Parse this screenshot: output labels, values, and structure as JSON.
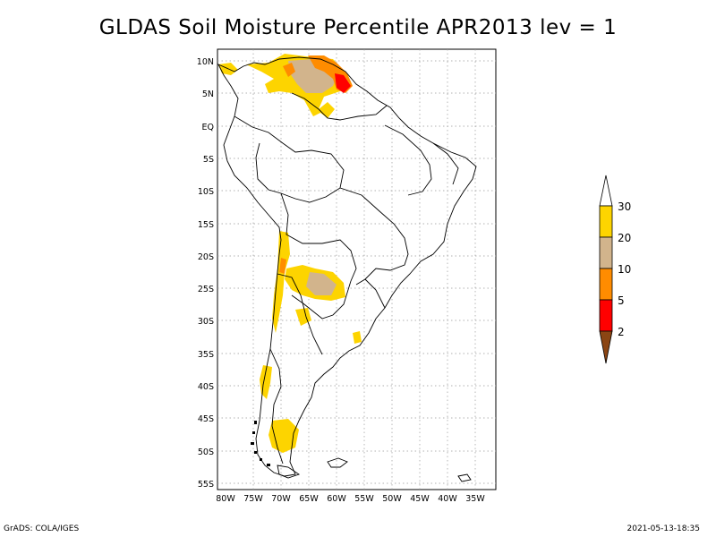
{
  "title": "GLDAS Soil Moisture Percentile APR2013 lev = 1",
  "footer": {
    "left": "GrADS: COLA/IGES",
    "right": "2021-05-13-18:35"
  },
  "map": {
    "lon_labels": [
      "80W",
      "75W",
      "70W",
      "65W",
      "60W",
      "55W",
      "50W",
      "45W",
      "40W",
      "35W"
    ],
    "lat_labels": [
      "10N",
      "5N",
      "EQ",
      "5S",
      "10S",
      "15S",
      "20S",
      "25S",
      "30S",
      "35S",
      "40S",
      "45S",
      "50S",
      "55S"
    ]
  },
  "legend": {
    "labels": [
      "30",
      "20",
      "10",
      "5",
      "2"
    ],
    "colors": [
      "#ffffff",
      "#fdd400",
      "#d2b48c",
      "#ff8c00",
      "#ff0000",
      "#8b4513"
    ]
  }
}
